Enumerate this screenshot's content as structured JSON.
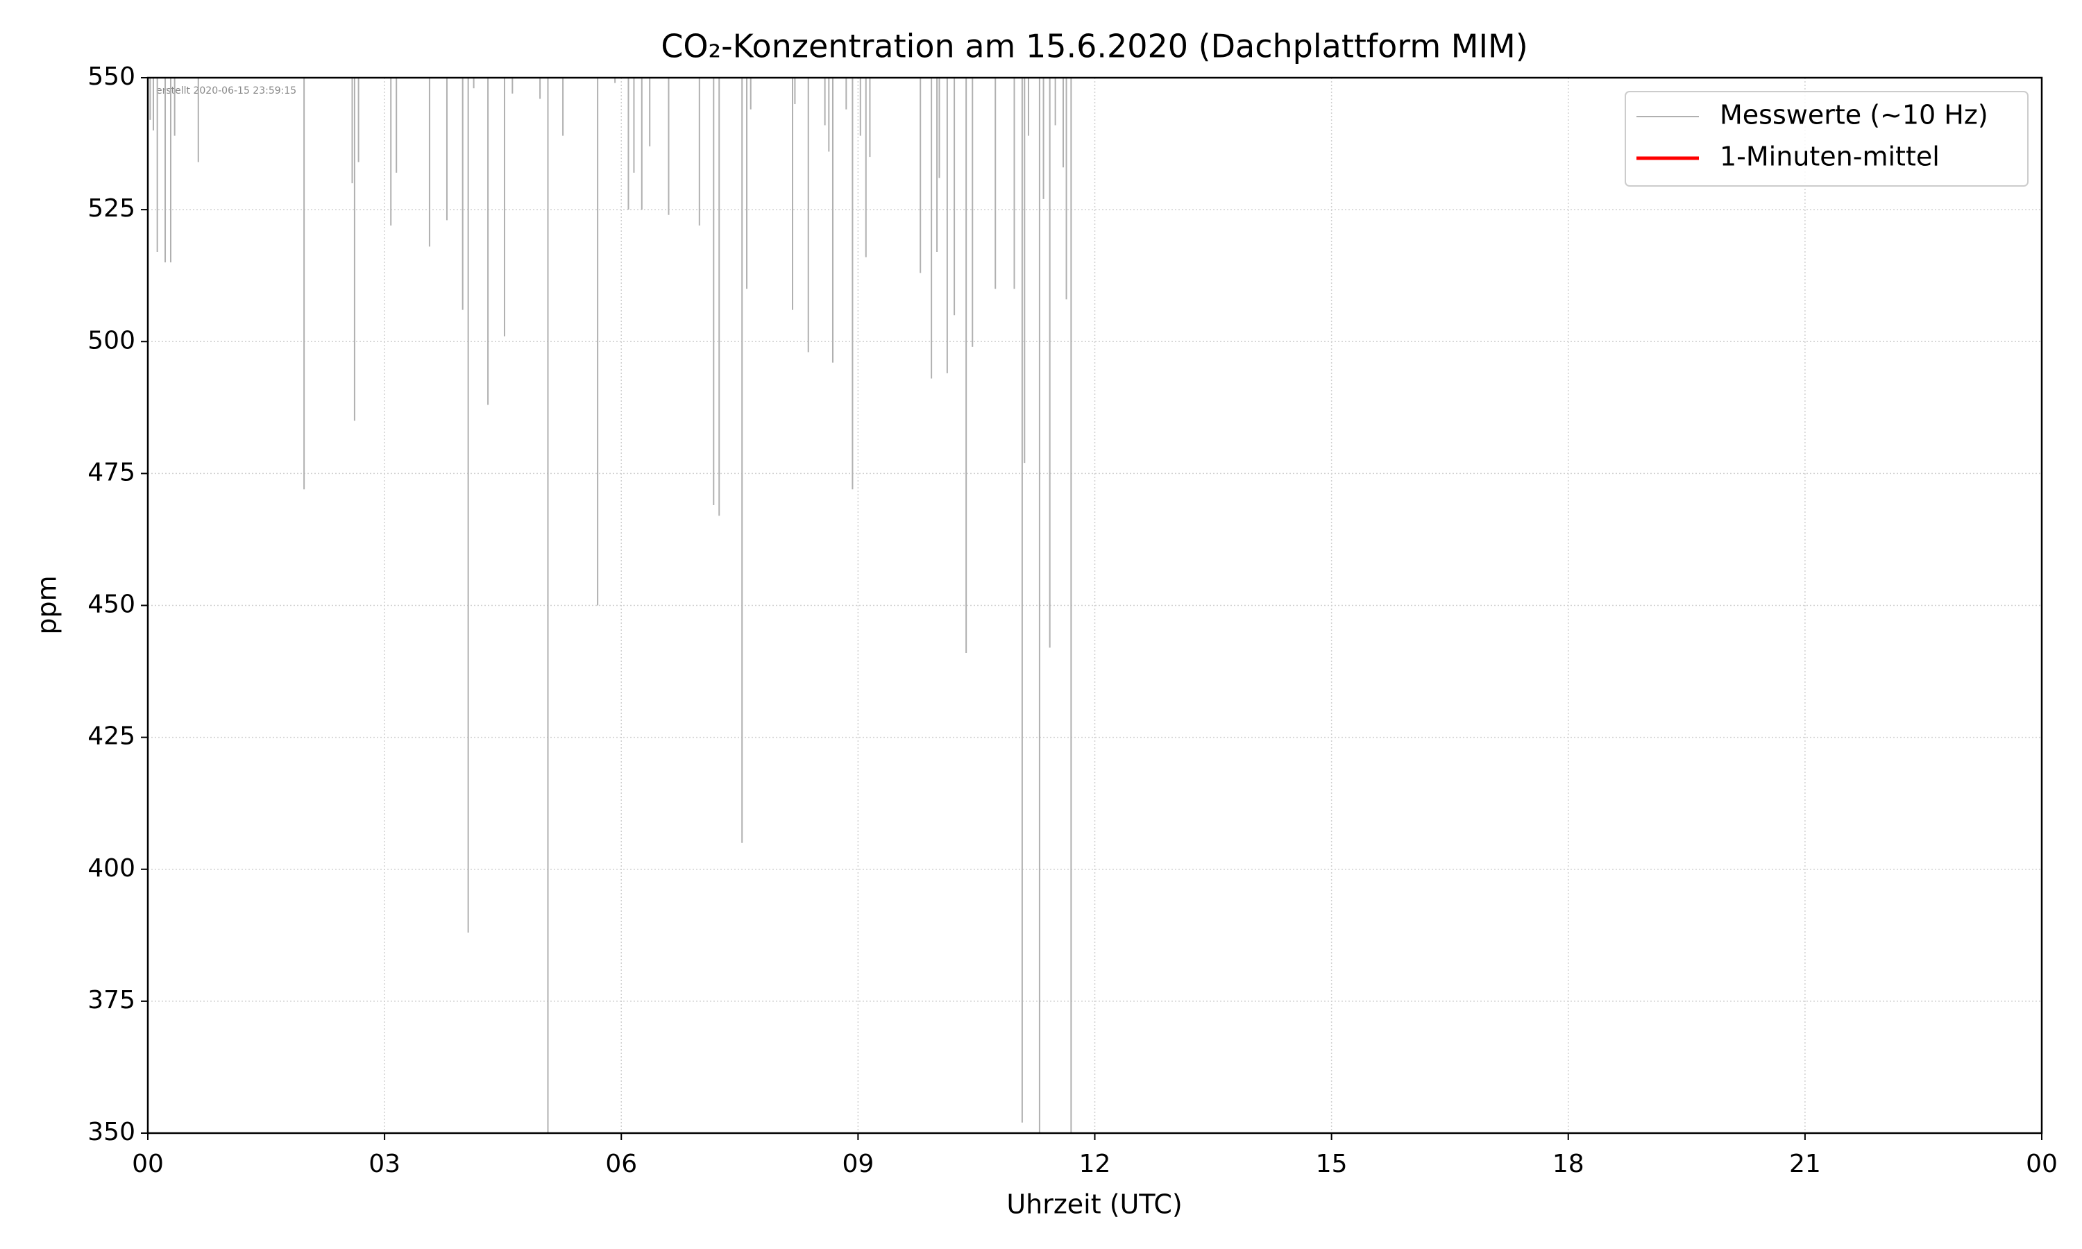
{
  "chart_data": {
    "type": "line",
    "title": "CO₂-Konzentration am 15.6.2020 (Dachplattform MIM)",
    "xlabel": "Uhrzeit (UTC)",
    "ylabel": "ppm",
    "annotation": "erstellt 2020-06-15 23:59:15",
    "xlim": [
      0,
      24
    ],
    "xticks": [
      {
        "value": 0,
        "label": "00"
      },
      {
        "value": 3,
        "label": "03"
      },
      {
        "value": 6,
        "label": "06"
      },
      {
        "value": 9,
        "label": "09"
      },
      12,
      15,
      18,
      21,
      {
        "value": 24,
        "label": "00"
      }
    ],
    "ylim": [
      350,
      550
    ],
    "yticks": [
      350,
      375,
      400,
      425,
      450,
      475,
      500,
      525,
      550
    ],
    "grid": true,
    "legend": "upper right",
    "series": [
      {
        "name": "Messwerte (~10 Hz)",
        "color": "#b0b0b0",
        "x": [
          0.03,
          0.07,
          0.12,
          0.22,
          0.29,
          0.34,
          0.64,
          1.98,
          2.59,
          2.62,
          2.67,
          3.08,
          3.15,
          3.57,
          3.79,
          3.99,
          4.06,
          4.13,
          4.31,
          4.52,
          4.62,
          4.97,
          5.07,
          5.26,
          5.7,
          5.92,
          6.09,
          6.16,
          6.26,
          6.36,
          6.6,
          6.99,
          7.17,
          7.24,
          7.53,
          7.59,
          7.64,
          8.17,
          8.2,
          8.37,
          8.58,
          8.63,
          8.68,
          8.85,
          8.93,
          9.03,
          9.1,
          9.15,
          9.79,
          9.93,
          10.0,
          10.03,
          10.13,
          10.22,
          10.37,
          10.45,
          10.74,
          10.98,
          11.08,
          11.11,
          11.16,
          11.3,
          11.35,
          11.43,
          11.5,
          11.6,
          11.64,
          11.7
        ],
        "values": [
          542,
          540,
          517,
          515,
          515,
          539,
          534,
          472,
          530,
          485,
          534,
          522,
          532,
          518,
          523,
          506,
          388,
          548,
          488,
          501,
          547,
          546,
          350,
          539,
          450,
          549,
          525,
          532,
          525,
          537,
          524,
          522,
          469,
          467,
          405,
          510,
          544,
          506,
          545,
          498,
          541,
          536,
          496,
          544,
          472,
          539,
          516,
          535,
          513,
          493,
          517,
          531,
          494,
          505,
          441,
          499,
          510,
          510,
          352,
          477,
          539,
          350,
          527,
          442,
          541,
          533,
          508,
          350
        ]
      },
      {
        "name": "1-Minuten-mittel",
        "color": "#ff0000",
        "x": [],
        "values": []
      }
    ]
  }
}
